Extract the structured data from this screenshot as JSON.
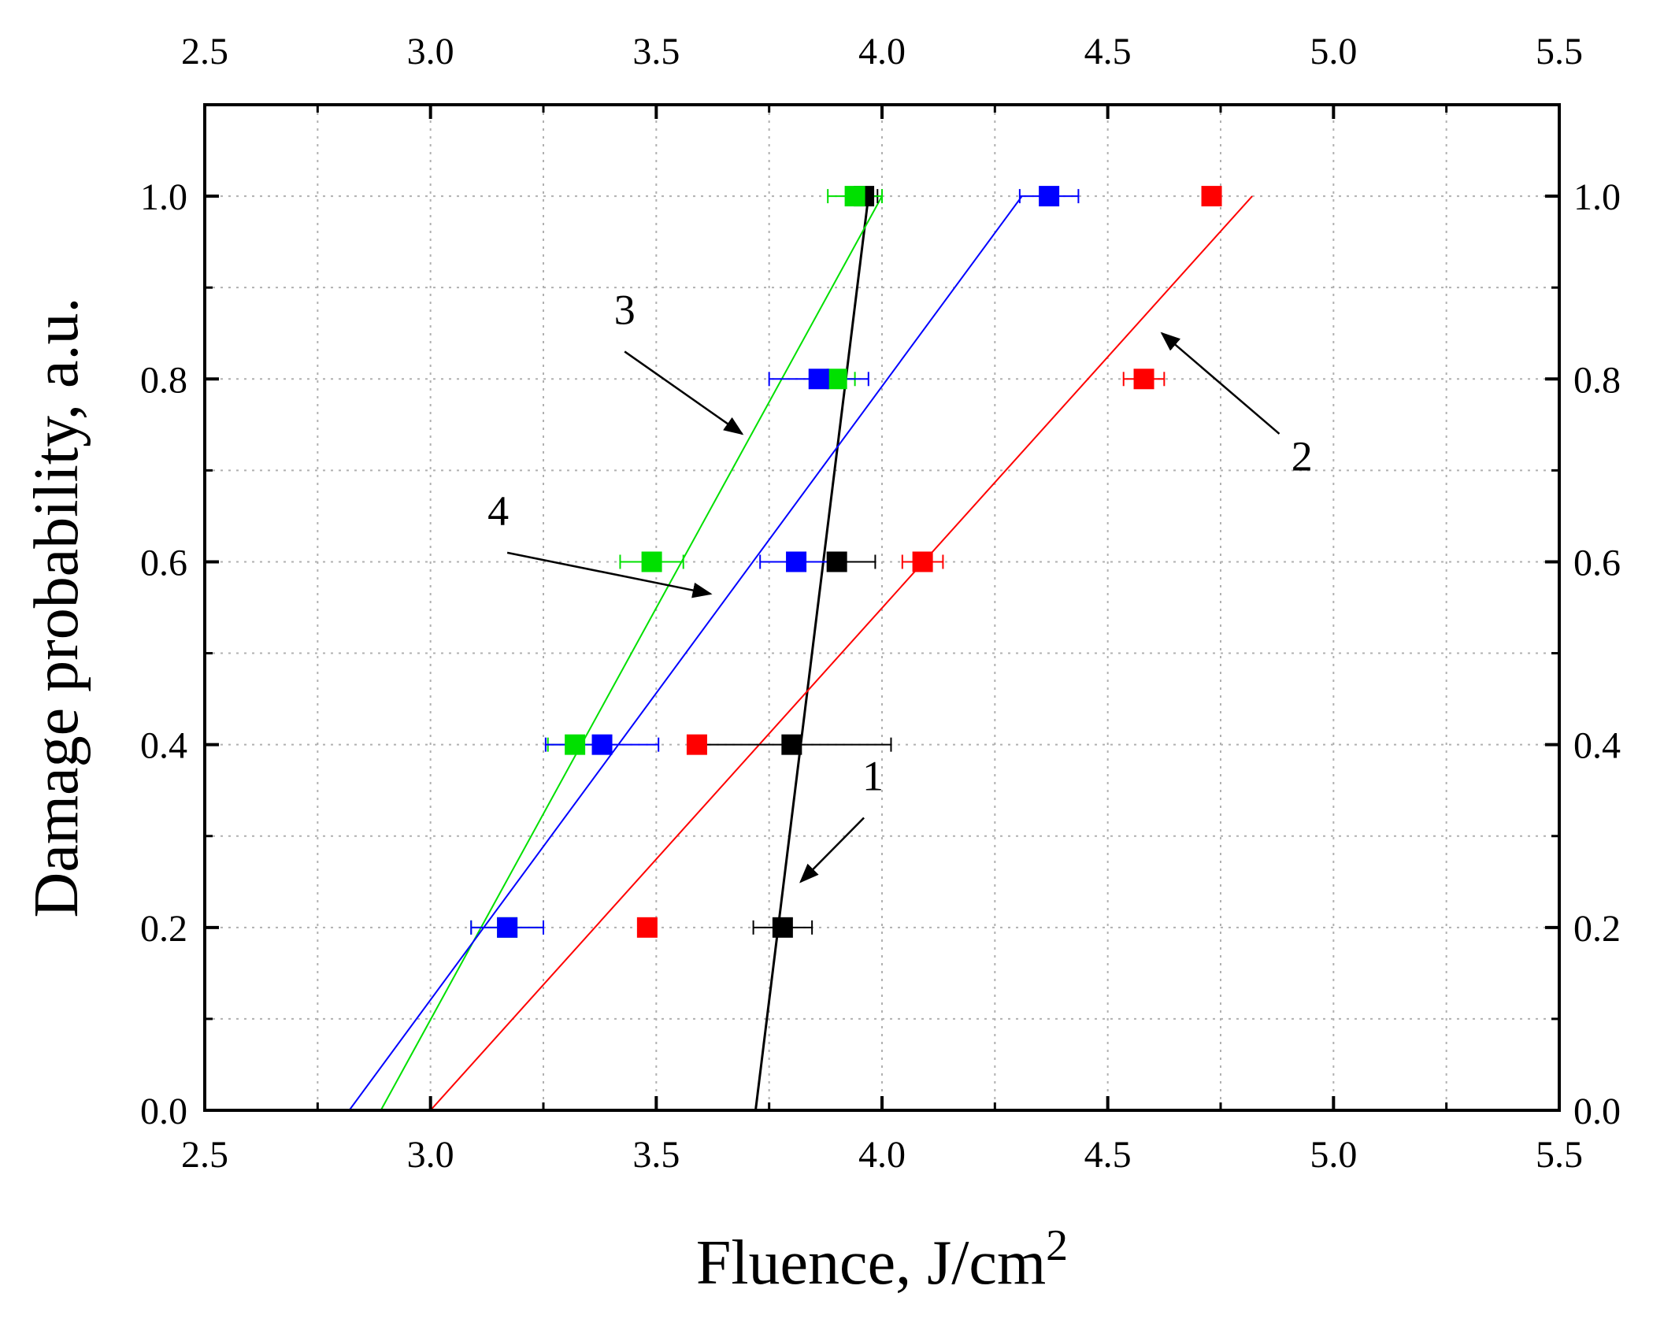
{
  "chart_data": {
    "type": "scatter",
    "xlabel": "Fluence, J/cm",
    "xlabel_superscript": "2",
    "ylabel": "Damage probability, a.u.",
    "xlim": [
      2.5,
      5.5
    ],
    "ylim": [
      0.0,
      1.1
    ],
    "x_ticks": [
      "2.5",
      "3.0",
      "3.5",
      "4.0",
      "4.5",
      "5.0",
      "5.5"
    ],
    "y_ticks": [
      "0.0",
      "0.2",
      "0.4",
      "0.6",
      "0.8",
      "1.0"
    ],
    "grid": true,
    "series": [
      {
        "color": "#000000",
        "points": [
          {
            "x": 3.78,
            "y": 0.2,
            "xerr": 0.065
          },
          {
            "x": 3.8,
            "y": 0.4,
            "xerr": 0.22
          },
          {
            "x": 3.9,
            "y": 0.6,
            "xerr": 0.085
          },
          {
            "x": 3.96,
            "y": 1.0,
            "xerr": 0.03
          }
        ],
        "fit": [
          [
            3.72,
            0.0
          ],
          [
            3.97,
            1.0
          ]
        ]
      },
      {
        "color": "#ff0000",
        "points": [
          {
            "x": 3.48,
            "y": 0.2,
            "xerr": 0
          },
          {
            "x": 3.59,
            "y": 0.4,
            "xerr": 0
          },
          {
            "x": 4.09,
            "y": 0.6,
            "xerr": 0.045
          },
          {
            "x": 4.58,
            "y": 0.8,
            "xerr": 0.045
          },
          {
            "x": 4.73,
            "y": 1.0,
            "xerr": 0
          }
        ],
        "fit": [
          [
            3.0,
            0.0
          ],
          [
            4.82,
            1.0
          ]
        ]
      },
      {
        "color": "#00e000",
        "points": [
          {
            "x": 3.17,
            "y": 0.2,
            "xerr": 0.08
          },
          {
            "x": 3.32,
            "y": 0.4,
            "xerr": 0.06
          },
          {
            "x": 3.49,
            "y": 0.6,
            "xerr": 0.07
          },
          {
            "x": 3.9,
            "y": 0.8,
            "xerr": 0.04
          },
          {
            "x": 3.94,
            "y": 1.0,
            "xerr": 0.06
          }
        ],
        "fit": [
          [
            2.89,
            0.0
          ],
          [
            4.0,
            1.0
          ]
        ]
      },
      {
        "color": "#0000ff",
        "points": [
          {
            "x": 3.17,
            "y": 0.2,
            "xerr": 0.08
          },
          {
            "x": 3.38,
            "y": 0.4,
            "xerr": 0.125
          },
          {
            "x": 3.81,
            "y": 0.6,
            "xerr": 0.08
          },
          {
            "x": 3.86,
            "y": 0.8,
            "xerr": 0.11
          },
          {
            "x": 4.37,
            "y": 1.0,
            "xerr": 0.065
          }
        ],
        "fit": [
          [
            2.82,
            0.0
          ],
          [
            4.31,
            1.0
          ]
        ]
      }
    ],
    "annotations": [
      {
        "label": "1",
        "text_x": 3.98,
        "text_y": 0.35,
        "arrow_from": [
          3.96,
          0.32
        ],
        "arrow_to": [
          3.82,
          0.25
        ]
      },
      {
        "label": "2",
        "text_x": 4.93,
        "text_y": 0.7,
        "arrow_from": [
          4.88,
          0.74
        ],
        "arrow_to": [
          4.62,
          0.85
        ]
      },
      {
        "label": "3",
        "text_x": 3.43,
        "text_y": 0.86,
        "arrow_from": [
          3.43,
          0.83
        ],
        "arrow_to": [
          3.69,
          0.74
        ]
      },
      {
        "label": "4",
        "text_x": 3.15,
        "text_y": 0.64,
        "arrow_from": [
          3.17,
          0.61
        ],
        "arrow_to": [
          3.62,
          0.565
        ]
      }
    ]
  }
}
